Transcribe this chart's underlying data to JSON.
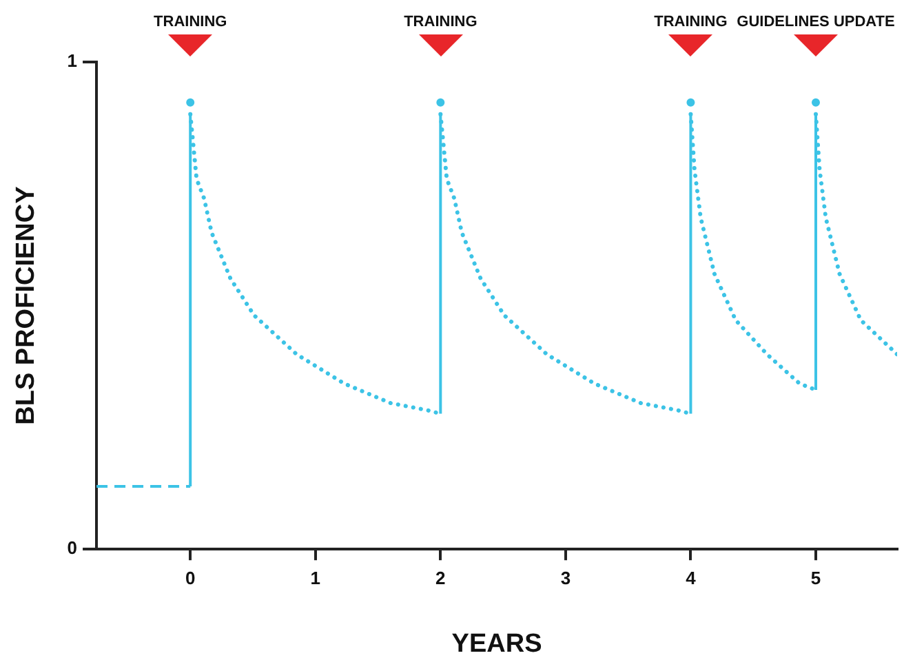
{
  "chart_data": {
    "type": "line",
    "xlabel": "YEARS",
    "ylabel": "BLS PROFICIENCY",
    "xlim": [
      -0.75,
      5.65
    ],
    "xticks": [
      0,
      1,
      2,
      3,
      4,
      5
    ],
    "ylim": [
      0,
      1
    ],
    "yticks": [
      0,
      1
    ],
    "grid": false,
    "legend": false,
    "annotations": [
      "TRAINING",
      "TRAINING",
      "TRAINING",
      "GUIDELINES UPDATE"
    ],
    "series": [
      {
        "color": "#3cc3e6",
        "line_style": "dashed",
        "marker": "none",
        "x": [
          -0.75,
          0
        ],
        "values": [
          0.129,
          0.129
        ]
      },
      {
        "color": "#3cc3e6",
        "line_style": "solid",
        "marker": "none",
        "x": [
          0,
          0,
          1,
          2,
          2,
          3,
          4,
          4,
          4.5,
          5,
          5
        ],
        "values": [
          0.129,
          0.893,
          null,
          0.278,
          0.893,
          null,
          0.278,
          0.893,
          null,
          0.327,
          0.893
        ]
      },
      {
        "color": "#3cc3e6",
        "line_style": "dotted",
        "marker": "none",
        "x": [
          0,
          0.05,
          0.11,
          0.17,
          0.32,
          0.51,
          0.85,
          1.23,
          1.6,
          1.9,
          2
        ],
        "values": [
          0.893,
          0.76,
          0.72,
          0.65,
          0.556,
          0.48,
          0.4,
          0.34,
          0.3,
          0.285,
          0.278
        ]
      },
      {
        "color": "#3cc3e6",
        "line_style": "dotted",
        "marker": "none",
        "x": [
          2,
          2.05,
          2.11,
          2.17,
          2.32,
          2.51,
          2.85,
          3.23,
          3.6,
          3.9,
          4
        ],
        "values": [
          0.893,
          0.76,
          0.72,
          0.65,
          0.556,
          0.48,
          0.4,
          0.34,
          0.3,
          0.285,
          0.278
        ]
      },
      {
        "color": "#3cc3e6",
        "line_style": "dotted",
        "marker": "none",
        "x": [
          4,
          4.03,
          4.08,
          4.19,
          4.36,
          4.61,
          4.87,
          5
        ],
        "values": [
          0.893,
          0.78,
          0.68,
          0.565,
          0.47,
          0.4,
          0.34,
          0.327
        ]
      },
      {
        "color": "#3cc3e6",
        "line_style": "dotted",
        "marker": "none",
        "x": [
          5,
          5.03,
          5.08,
          5.19,
          5.36,
          5.65
        ],
        "values": [
          0.893,
          0.78,
          0.68,
          0.565,
          0.47,
          0.4
        ]
      },
      {
        "type": "scatter",
        "color": "#3cc3e6",
        "marker": "circle",
        "x": [
          0,
          2,
          4,
          5
        ],
        "values": [
          0.917,
          0.917,
          0.917,
          0.917
        ]
      }
    ]
  }
}
